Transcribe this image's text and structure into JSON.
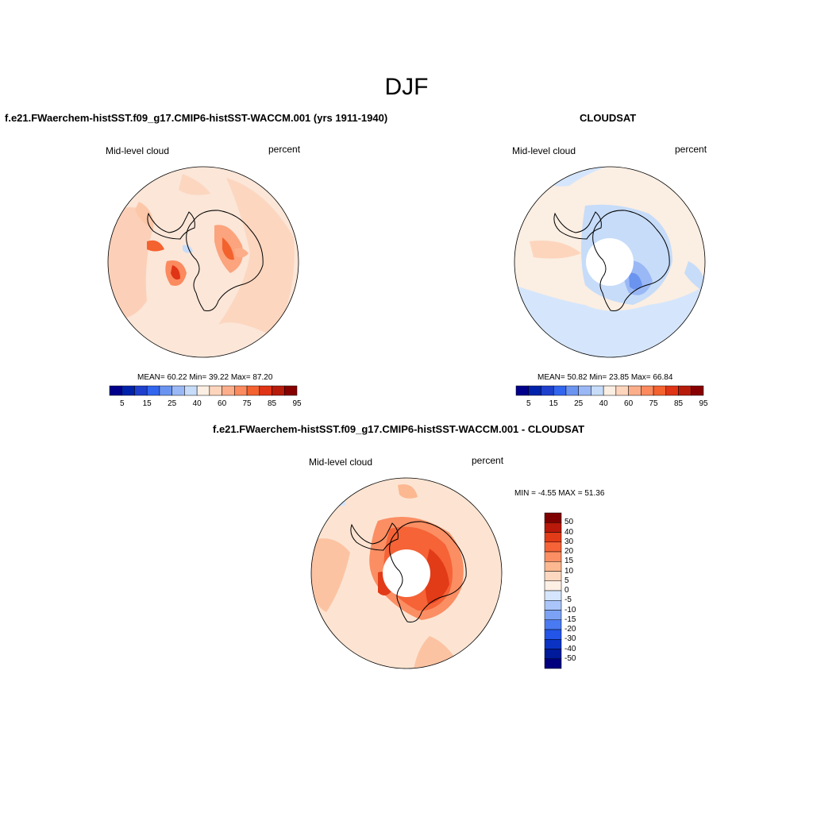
{
  "page_title": "DJF",
  "colors": {
    "sequential": [
      "#00008b",
      "#0022aa",
      "#1e40cc",
      "#3366ee",
      "#6b94f0",
      "#9ab8f5",
      "#c6dcf9",
      "#fbeee2",
      "#fdd5bd",
      "#fcae8a",
      "#fb8a5e",
      "#f4622f",
      "#e03416",
      "#b71c0b",
      "#870000"
    ],
    "diff": [
      "#00007f",
      "#001a9c",
      "#0a33c4",
      "#2255e8",
      "#4a7af2",
      "#7ca2f5",
      "#a9c5fa",
      "#d5e6fc",
      "#fff0e6",
      "#fdd8c0",
      "#fcb890",
      "#fb8e63",
      "#f56337",
      "#e23b18",
      "#b8190a",
      "#7f0000"
    ],
    "coast": "#000000"
  },
  "panels": [
    {
      "id": "model",
      "title": "f.e21.FWaerchem-histSST.f09_g17.CMIP6-histSST-WACCM.001 (yrs 1911-1940)",
      "variable": "Mid-level cloud",
      "units": "percent",
      "stats": "MEAN=  60.22  Min=  39.22  Max=  87.20",
      "colorbar_labels": [
        "5",
        "15",
        "25",
        "40",
        "60",
        "75",
        "85",
        "95"
      ]
    },
    {
      "id": "obs",
      "title": "CLOUDSAT",
      "variable": "Mid-level cloud",
      "units": "percent",
      "stats": "MEAN=  50.82  Min=  23.85  Max=  66.84",
      "colorbar_labels": [
        "5",
        "15",
        "25",
        "40",
        "60",
        "75",
        "85",
        "95"
      ]
    },
    {
      "id": "diff",
      "title": "f.e21.FWaerchem-histSST.f09_g17.CMIP6-histSST-WACCM.001 - CLOUDSAT",
      "variable": "Mid-level cloud",
      "units": "percent",
      "stats": "MIN =  -4.55 MAX =  51.36",
      "colorbar_labels": [
        "50",
        "40",
        "30",
        "20",
        "15",
        "10",
        "5",
        "0",
        "-5",
        "-10",
        "-15",
        "-20",
        "-30",
        "-40",
        "-50"
      ]
    }
  ]
}
